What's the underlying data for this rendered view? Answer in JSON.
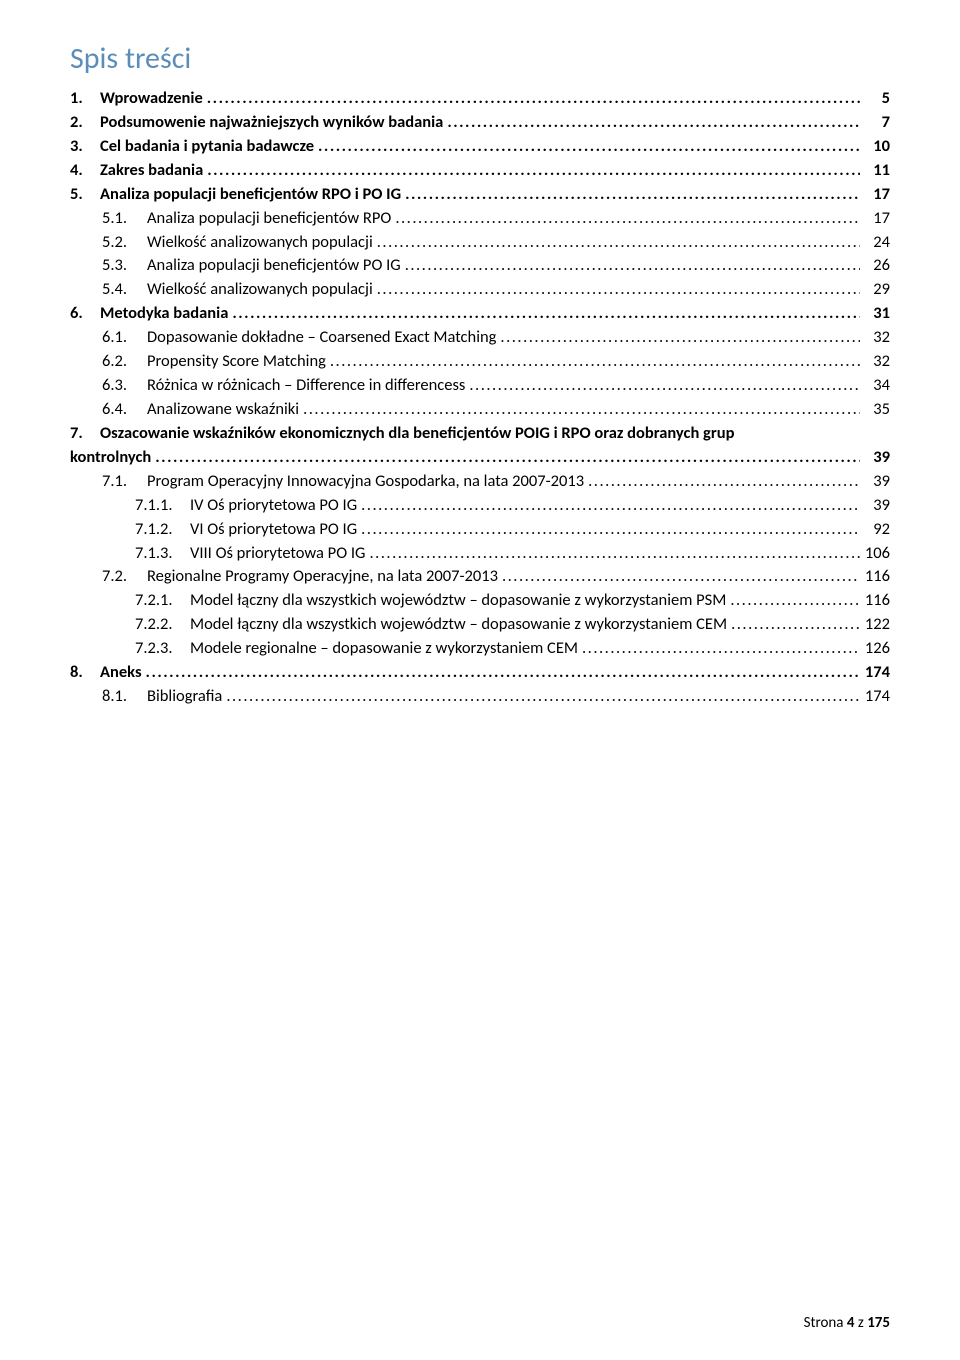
{
  "title": "Spis treści",
  "footer": {
    "prefix": "Strona ",
    "page": "4",
    "sep": " z ",
    "total": "175"
  },
  "items": [
    {
      "num": "1.",
      "text": "Wprowadzenie",
      "page": "5",
      "indent": 0,
      "bold": true
    },
    {
      "num": "2.",
      "text": "Podsumowenie najważniejszych wyników badania",
      "page": "7",
      "indent": 0,
      "bold": true
    },
    {
      "num": "3.",
      "text": "Cel badania i pytania badawcze",
      "page": "10",
      "indent": 0,
      "bold": true
    },
    {
      "num": "4.",
      "text": "Zakres badania",
      "page": "11",
      "indent": 0,
      "bold": true
    },
    {
      "num": "5.",
      "text": "Analiza populacji beneficjentów RPO i PO IG",
      "page": "17",
      "indent": 0,
      "bold": true
    },
    {
      "num": "5.1.",
      "text": "Analiza populacji beneficjentów RPO",
      "page": "17",
      "indent": 1,
      "bold": false
    },
    {
      "num": "5.2.",
      "text": "Wielkość analizowanych populacji",
      "page": "24",
      "indent": 1,
      "bold": false
    },
    {
      "num": "5.3.",
      "text": "Analiza populacji beneficjentów PO IG",
      "page": "26",
      "indent": 1,
      "bold": false
    },
    {
      "num": "5.4.",
      "text": "Wielkość analizowanych populacji",
      "page": "29",
      "indent": 1,
      "bold": false
    },
    {
      "num": "6.",
      "text": "Metodyka badania",
      "page": "31",
      "indent": 0,
      "bold": true
    },
    {
      "num": "6.1.",
      "text": "Dopasowanie dokładne – Coarsened Exact Matching",
      "page": "32",
      "indent": 1,
      "bold": false
    },
    {
      "num": "6.2.",
      "text": "Propensity Score Matching",
      "page": "32",
      "indent": 1,
      "bold": false
    },
    {
      "num": "6.3.",
      "text": "Różnica w różnicach – Difference in differencess",
      "page": "34",
      "indent": 1,
      "bold": false
    },
    {
      "num": "6.4.",
      "text": "Analizowane wskaźniki",
      "page": "35",
      "indent": 1,
      "bold": false
    },
    {
      "num": "7.",
      "text": "Oszacowanie wskaźników ekonomicznych dla beneficjentów POIG i RPO oraz dobranych grup",
      "page": "",
      "indent": 0,
      "bold": true,
      "noLeader": true
    },
    {
      "num": "",
      "text": "kontrolnych",
      "page": "39",
      "indent": 0,
      "bold": true,
      "continuation": true
    },
    {
      "num": "7.1.",
      "text": "Program Operacyjny Innowacyjna Gospodarka, na lata 2007-2013",
      "page": "39",
      "indent": 1,
      "bold": false
    },
    {
      "num": "7.1.1.",
      "text": "IV Oś priorytetowa PO IG",
      "page": "39",
      "indent": 2,
      "bold": false
    },
    {
      "num": "7.1.2.",
      "text": "VI Oś priorytetowa PO IG",
      "page": "92",
      "indent": 2,
      "bold": false
    },
    {
      "num": "7.1.3.",
      "text": "VIII Oś priorytetowa PO IG",
      "page": "106",
      "indent": 2,
      "bold": false
    },
    {
      "num": "7.2.",
      "text": "Regionalne Programy Operacyjne, na lata 2007-2013",
      "page": "116",
      "indent": 1,
      "bold": false
    },
    {
      "num": "7.2.1.",
      "text": "Model łączny dla wszystkich województw – dopasowanie z wykorzystaniem PSM",
      "page": "116",
      "indent": 2,
      "bold": false
    },
    {
      "num": "7.2.2.",
      "text": "Model łączny dla wszystkich województw – dopasowanie z wykorzystaniem CEM",
      "page": "122",
      "indent": 2,
      "bold": false
    },
    {
      "num": "7.2.3.",
      "text": "Modele regionalne – dopasowanie z wykorzystaniem CEM",
      "page": "126",
      "indent": 2,
      "bold": false
    },
    {
      "num": "8.",
      "text": "Aneks",
      "page": "174",
      "indent": 0,
      "bold": true
    },
    {
      "num": "8.1.",
      "text": "Bibliografia",
      "page": "174",
      "indent": 1,
      "bold": false
    }
  ]
}
